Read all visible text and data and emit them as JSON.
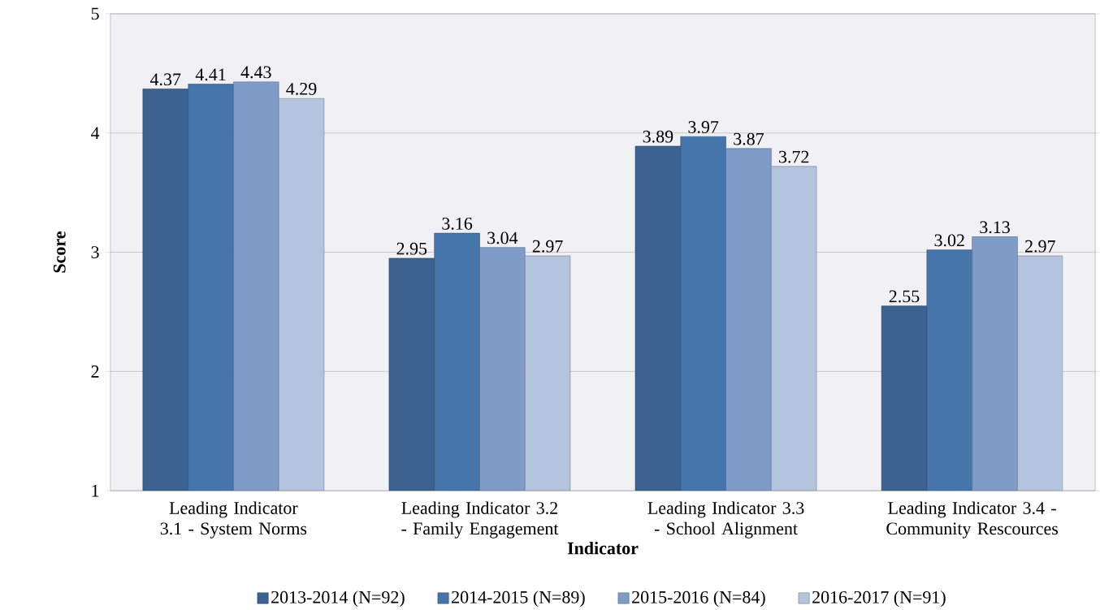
{
  "chart_data": {
    "type": "bar",
    "xlabel": "Indicator",
    "ylabel": "Score",
    "categories": [
      "Leading Indicator 3.1 - System Norms",
      "Leading Indicator 3.2 - Family Engagement",
      "Leading Indicator 3.3 - School Alignment",
      "Leading Indicator 3.4 - Community Rescources"
    ],
    "series": [
      {
        "name": "2013-2014  (N=92)",
        "color": "#3b6291",
        "values": [
          4.37,
          2.95,
          3.89,
          2.55
        ]
      },
      {
        "name": "2014-2015  (N=89)",
        "color": "#4675ab",
        "values": [
          4.41,
          3.16,
          3.97,
          3.02
        ]
      },
      {
        "name": "2015-2016  (N=84)",
        "color": "#7f9cc8",
        "values": [
          4.43,
          3.04,
          3.87,
          3.13
        ]
      },
      {
        "name": "2016-2017  (N=91)",
        "color": "#b4c3de",
        "values": [
          4.29,
          2.97,
          3.72,
          2.97
        ]
      }
    ],
    "ylim": [
      1,
      5
    ],
    "yticks": [
      1,
      2,
      3,
      4,
      5
    ],
    "grid": "y",
    "legend": "bottom",
    "data_labels": true
  }
}
